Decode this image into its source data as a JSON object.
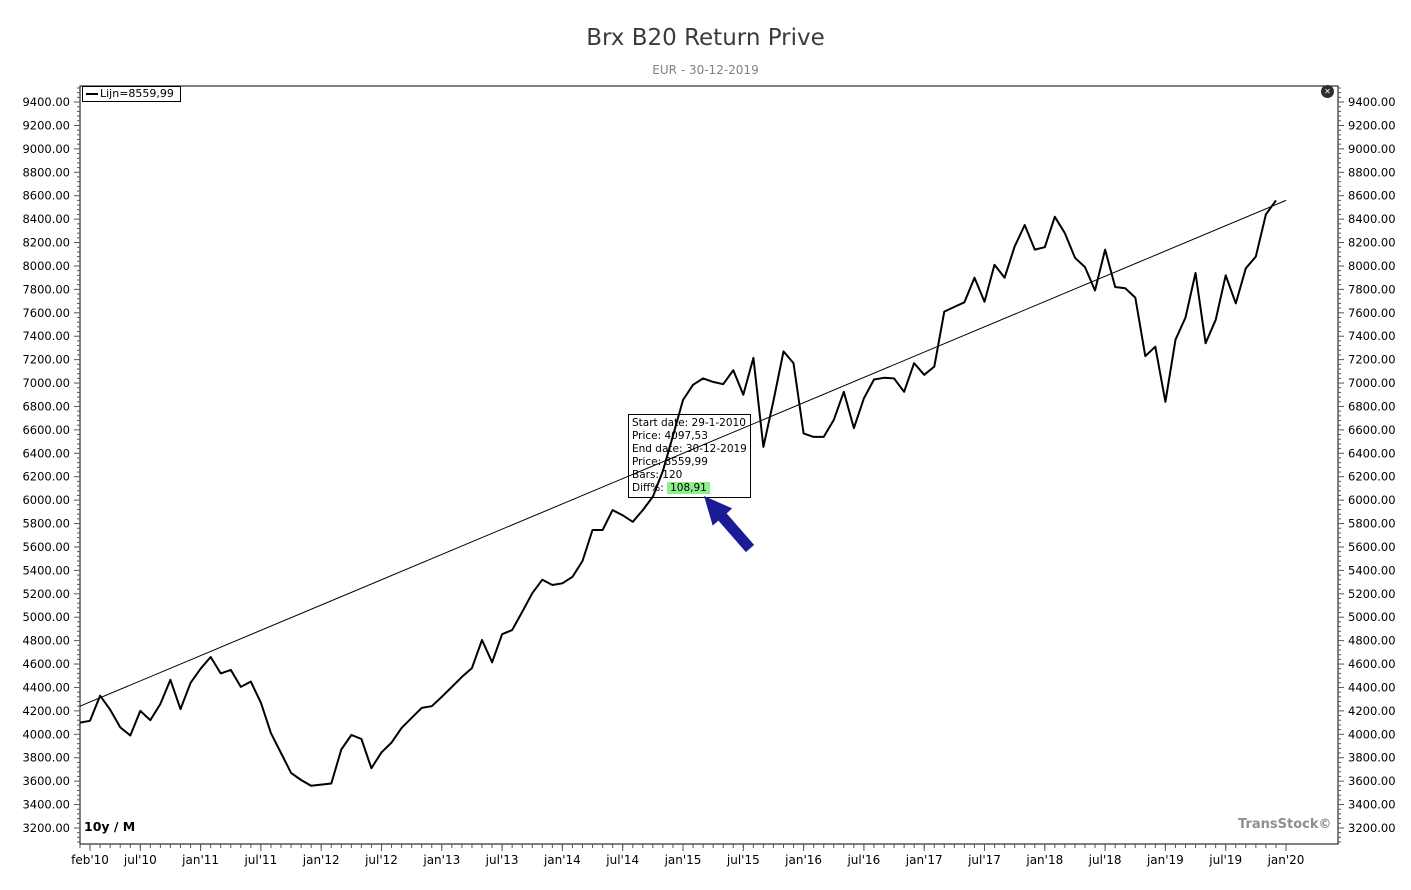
{
  "header": {
    "title": "Brx B20 Return Prive",
    "subtitle": "EUR - 30-12-2019"
  },
  "legend": {
    "label": "Lijn=8559,99"
  },
  "controls": {
    "close_glyph": "✕"
  },
  "footer": {
    "range_label": "10y / M",
    "brand": "TransStock©"
  },
  "tooltip": {
    "lines": [
      "Start date: 29-1-2010",
      "Price: 4097,53",
      "End date: 30-12-2019",
      "Price: 8559,99",
      "Bars: 120"
    ],
    "diff_label": "Diff%:",
    "diff_value": "108,91",
    "highlight_color": "#8df08c"
  },
  "colors": {
    "line": "#000000",
    "trend": "#000000",
    "axis": "#000000",
    "tick": "#555555",
    "cursor_arrow": "#1b1b96"
  },
  "chart_data": {
    "type": "line",
    "title": "Brx B20 Return Prive",
    "subtitle": "EUR - 30-12-2019",
    "xlabel": "",
    "ylabel": "",
    "x_start": "2010-01",
    "x_end": "2019-12",
    "x_months": 120,
    "bars": 120,
    "grid": false,
    "legend_position": "top-left",
    "ylim": [
      3063,
      9537
    ],
    "y_axis": {
      "min": 3200,
      "max": 9400,
      "step": 200,
      "minor_step": 40,
      "format": "0.00",
      "sides": "both"
    },
    "x_ticks": [
      {
        "label": "feb'10",
        "month": 1
      },
      {
        "label": "jul'10",
        "month": 6
      },
      {
        "label": "jan'11",
        "month": 12
      },
      {
        "label": "jul'11",
        "month": 18
      },
      {
        "label": "jan'12",
        "month": 24
      },
      {
        "label": "jul'12",
        "month": 30
      },
      {
        "label": "jan'13",
        "month": 36
      },
      {
        "label": "jul'13",
        "month": 42
      },
      {
        "label": "jan'14",
        "month": 48
      },
      {
        "label": "jul'14",
        "month": 54
      },
      {
        "label": "jan'15",
        "month": 60
      },
      {
        "label": "jul'15",
        "month": 66
      },
      {
        "label": "jan'16",
        "month": 72
      },
      {
        "label": "jul'16",
        "month": 78
      },
      {
        "label": "jan'17",
        "month": 84
      },
      {
        "label": "jul'17",
        "month": 90
      },
      {
        "label": "jan'18",
        "month": 96
      },
      {
        "label": "jul'18",
        "month": 102
      },
      {
        "label": "jan'19",
        "month": 108
      },
      {
        "label": "jul'19",
        "month": 114
      },
      {
        "label": "jan'20",
        "month": 120
      }
    ],
    "series": [
      {
        "name": "price",
        "start_price": 4097.53,
        "end_price": 8559.99,
        "values": [
          4100,
          4115,
          4330,
          4210,
          4060,
          3990,
          4200,
          4120,
          4260,
          4465,
          4215,
          4440,
          4560,
          4660,
          4520,
          4550,
          4405,
          4450,
          4270,
          4010,
          3840,
          3670,
          3610,
          3560,
          3570,
          3580,
          3870,
          3995,
          3960,
          3710,
          3845,
          3930,
          4055,
          4140,
          4225,
          4240,
          4320,
          4405,
          4490,
          4565,
          4805,
          4615,
          4855,
          4890,
          5045,
          5205,
          5320,
          5275,
          5290,
          5345,
          5480,
          5745,
          5745,
          5915,
          5870,
          5815,
          5915,
          6030,
          6250,
          6550,
          6855,
          6985,
          7040,
          7010,
          6990,
          7110,
          6900,
          7215,
          6455,
          6850,
          7270,
          7170,
          6570,
          6540,
          6540,
          6685,
          6925,
          6615,
          6870,
          7030,
          7045,
          7040,
          6925,
          7170,
          7070,
          7140,
          7610,
          7650,
          7690,
          7900,
          7695,
          8010,
          7900,
          8165,
          8350,
          8140,
          8160,
          8420,
          8280,
          8070,
          7990,
          7790,
          8140,
          7820,
          7810,
          7730,
          7230,
          7310,
          6840,
          7370,
          7560,
          7940,
          7340,
          7540,
          7920,
          7680,
          7980,
          8080,
          8440,
          8560
        ]
      }
    ],
    "trendline": {
      "name": "Lijn",
      "start_value": 4240,
      "end_value": 8560
    }
  }
}
